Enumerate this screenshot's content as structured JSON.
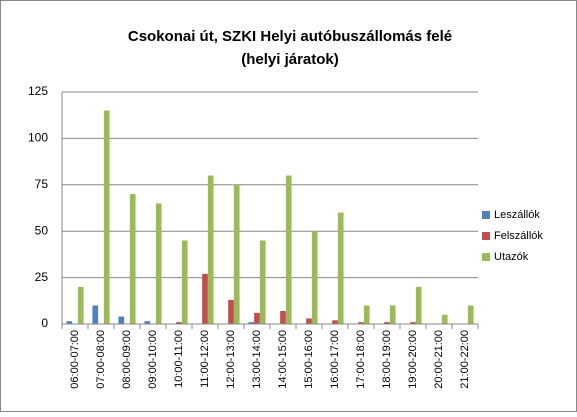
{
  "chart_data": {
    "type": "bar",
    "title": [
      "Csokonai út, SZKI Helyi autóbuszállomás felé",
      "(helyi járatok)"
    ],
    "categories": [
      "06:00-07:00",
      "07:00-08:00",
      "08:00-09:00",
      "09:00-10:00",
      "10:00-11:00",
      "11:00-12:00",
      "12:00-13:00",
      "13:00-14:00",
      "14:00-15:00",
      "15:00-16:00",
      "16:00-17:00",
      "17:00-18:00",
      "18:00-19:00",
      "19:00-20:00",
      "20:00-21:00",
      "21:00-22:00"
    ],
    "series": [
      {
        "name": "Leszállók",
        "color": "#4f81bd",
        "values": [
          1.5,
          10,
          4,
          1.5,
          0,
          0,
          0,
          1,
          0,
          0,
          0,
          0,
          0,
          0,
          0,
          0
        ]
      },
      {
        "name": "Felszállók",
        "color": "#c0504d",
        "values": [
          0,
          0,
          0,
          0,
          1,
          27,
          13,
          6,
          7,
          3,
          2,
          1,
          1,
          1,
          0,
          0
        ]
      },
      {
        "name": "Utazók",
        "color": "#9bbb59",
        "values": [
          20,
          115,
          70,
          65,
          45,
          80,
          75,
          45,
          80,
          50,
          60,
          10,
          10,
          20,
          5,
          10
        ]
      }
    ],
    "ylim": [
      0,
      125
    ],
    "yticks": [
      0,
      25,
      50,
      75,
      100,
      125
    ],
    "grid": true,
    "legend": "right"
  }
}
